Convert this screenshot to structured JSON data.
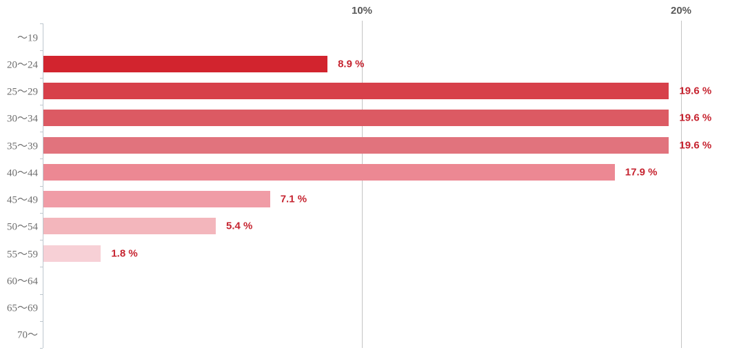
{
  "chart_data": {
    "type": "bar",
    "orientation": "horizontal",
    "title": "",
    "xlabel": "",
    "ylabel": "",
    "categories": [
      "～19",
      "20～24",
      "25～29",
      "30～34",
      "35～39",
      "40～44",
      "45～49",
      "50～54",
      "55～59",
      "60～64",
      "65～69",
      "70～"
    ],
    "values": [
      0,
      8.9,
      19.6,
      19.6,
      19.6,
      17.9,
      7.1,
      5.4,
      1.8,
      0,
      0,
      0
    ],
    "value_labels": [
      "",
      "8.9 %",
      "19.6 %",
      "19.6 %",
      "19.6 %",
      "17.9 %",
      "7.1 %",
      "5.4 %",
      "1.8 %",
      "",
      "",
      ""
    ],
    "bar_colors": [
      "",
      "#d2242e",
      "#d7404a",
      "#dc5a63",
      "#e1737d",
      "#ec8893",
      "#f09ca6",
      "#f3b6bc",
      "#f7d0d6",
      "",
      "",
      ""
    ],
    "x_axis": {
      "tick_labels": [
        "10%",
        "20%"
      ],
      "tick_values": [
        10,
        20
      ],
      "min": 0,
      "max": 22.2
    },
    "grid": true,
    "legend": false,
    "colors": {
      "value_label": "#c62430",
      "axis_tick_label": "#595959",
      "category_label": "#6e6e6e",
      "gridline": "#c3c3c3",
      "axis_line": "#bdc6cd",
      "background": "#ffffff"
    }
  }
}
